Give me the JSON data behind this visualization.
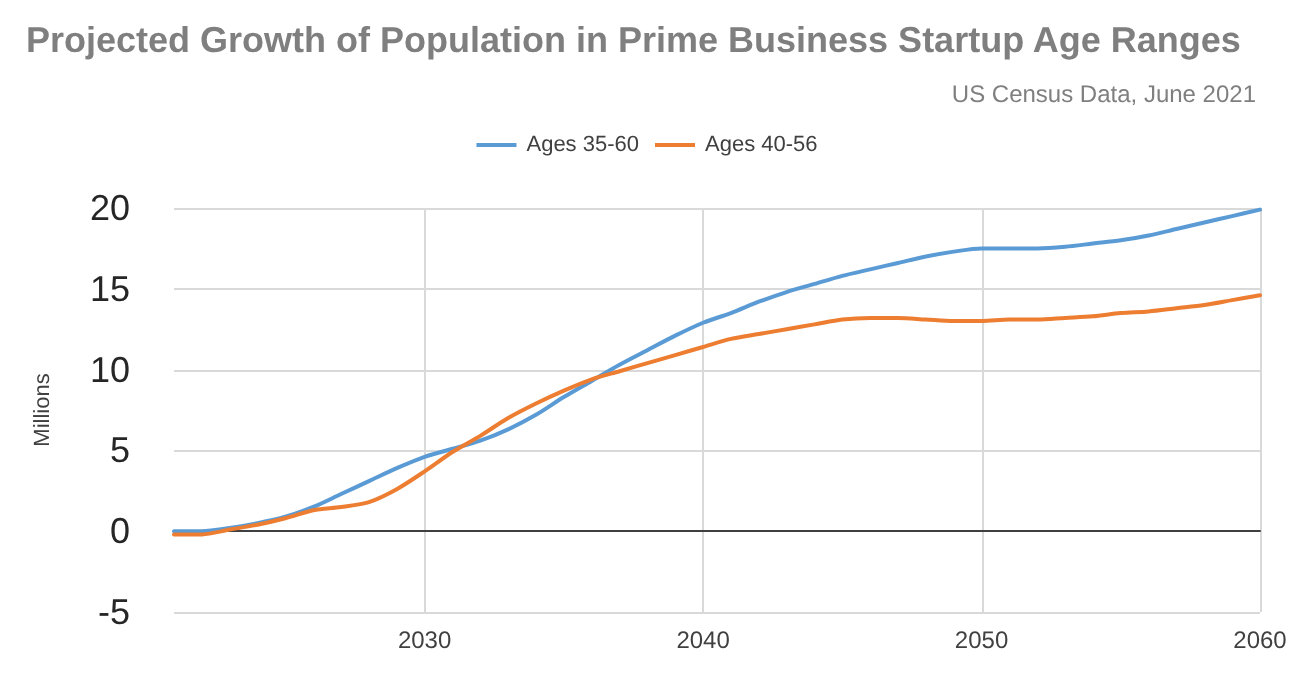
{
  "chart_data": {
    "type": "line",
    "title": "Projected Growth of Population in Prime Business Startup Age Ranges",
    "subtitle": "US Census Data, June 2021",
    "ylabel": "Millions",
    "x": [
      2021,
      2022,
      2023,
      2024,
      2025,
      2026,
      2027,
      2028,
      2029,
      2030,
      2031,
      2032,
      2033,
      2034,
      2035,
      2036,
      2037,
      2038,
      2039,
      2040,
      2041,
      2042,
      2043,
      2044,
      2045,
      2046,
      2047,
      2048,
      2049,
      2050,
      2051,
      2052,
      2053,
      2054,
      2055,
      2056,
      2057,
      2058,
      2059,
      2060
    ],
    "series": [
      {
        "name": "Ages 35-60",
        "color": "#5b9bd5",
        "values": [
          0,
          0,
          0.2,
          0.5,
          0.9,
          1.5,
          2.3,
          3.1,
          3.9,
          4.6,
          5.1,
          5.6,
          6.3,
          7.2,
          8.3,
          9.3,
          10.3,
          11.2,
          12.1,
          12.9,
          13.5,
          14.2,
          14.8,
          15.3,
          15.8,
          16.2,
          16.6,
          17.0,
          17.3,
          17.5,
          17.5,
          17.5,
          17.6,
          17.8,
          18.0,
          18.3,
          18.7,
          19.1,
          19.5,
          19.9
        ]
      },
      {
        "name": "Ages 40-56",
        "color": "#ed7d31",
        "values": [
          -0.2,
          -0.2,
          0.1,
          0.4,
          0.8,
          1.3,
          1.5,
          1.8,
          2.6,
          3.7,
          4.9,
          5.9,
          7.0,
          7.9,
          8.7,
          9.4,
          9.9,
          10.4,
          10.9,
          11.4,
          11.9,
          12.2,
          12.5,
          12.8,
          13.1,
          13.2,
          13.2,
          13.1,
          13.0,
          13.0,
          13.1,
          13.1,
          13.2,
          13.3,
          13.5,
          13.6,
          13.8,
          14.0,
          14.3,
          14.6
        ]
      }
    ],
    "xlim": [
      2021,
      2060
    ],
    "xticks": [
      2030,
      2040,
      2050,
      2060
    ],
    "ylim": [
      -5,
      20
    ],
    "yticks": [
      -5,
      0,
      5,
      10,
      15,
      20
    ],
    "grid": true,
    "legend": "top",
    "marker": "none",
    "line_style": "solid"
  }
}
